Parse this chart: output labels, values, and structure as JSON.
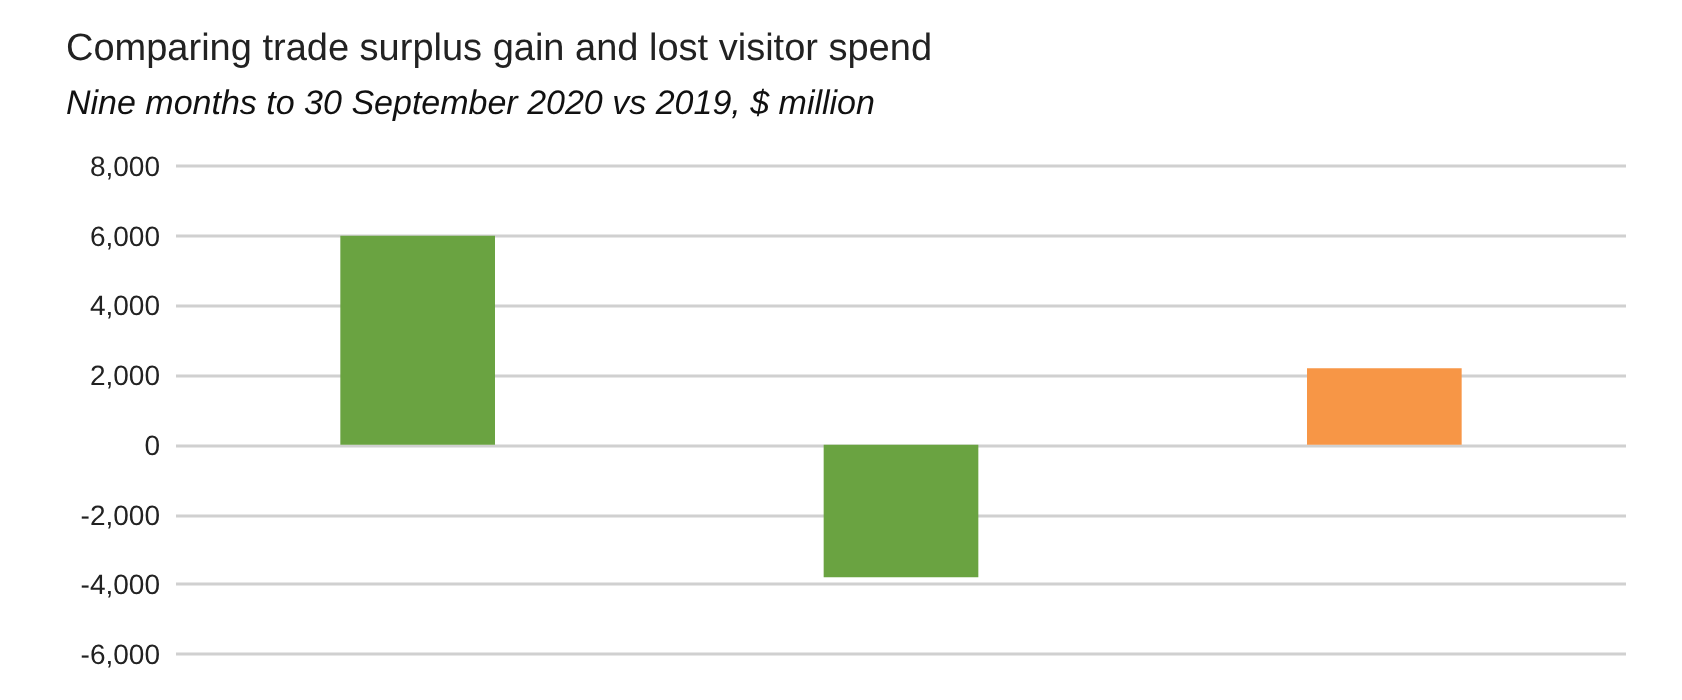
{
  "chart_data": {
    "type": "bar",
    "title": "Comparing trade surplus gain and lost visitor spend",
    "subtitle": "Nine months to 30 September 2020 vs 2019, $ million",
    "categories": [
      null,
      null,
      null
    ],
    "values": [
      6000,
      -3800,
      2200
    ],
    "colors": [
      "#6aa341",
      "#6aa341",
      "#f79646"
    ],
    "ylim": [
      -6000,
      8000
    ],
    "yticks": [
      {
        "value": -6000,
        "label": "-6,000"
      },
      {
        "value": -4000,
        "label": "-4,000"
      },
      {
        "value": -2000,
        "label": "-2,000"
      },
      0,
      {
        "value": 2000,
        "label": "2,000"
      },
      {
        "value": 4000,
        "label": "4,000"
      },
      {
        "value": 6000,
        "label": "6,000"
      },
      {
        "value": 8000,
        "label": "8,000"
      }
    ],
    "grid": "y"
  }
}
